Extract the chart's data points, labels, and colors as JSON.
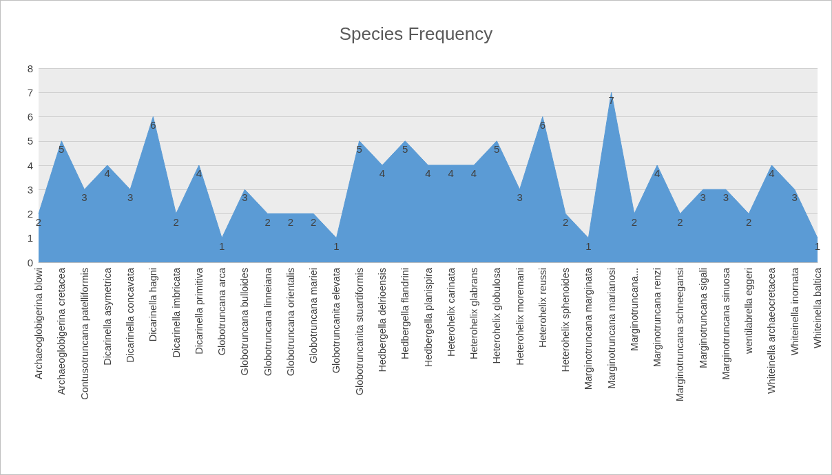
{
  "chart_data": {
    "type": "area",
    "title": "Species Frequency",
    "categories": [
      "Archaeoglobigerina blowi",
      "Archaeoglobigerina cretacea",
      "Contusotruncana patelliformis",
      "Dicarinella asymetrica",
      "Dicarinella concavata",
      "Dicarinella hagni",
      "Dicarinella imbricata",
      "Dicarinella primitiva",
      "Globotruncana arca",
      "Globotruncana bulloides",
      "Globotruncana linneiana",
      "Globotruncana orientalis",
      "Globotruncana mariei",
      "Globotruncanita elevata",
      "Globotruncanita stuartiformis",
      "Hedbergella delrioensis",
      "Hedbergella flandrini",
      "Hedbergella planispira",
      "Heterohelix carinata",
      "Heterohelix glabrans",
      "Heterohelix globulosa",
      "Heterohelix moremani",
      "Heterohelix reussi",
      "Heterohelix sphenoides",
      "Marginotruncana marginata",
      "Marginotruncana marianosi",
      "Marginotruncana...",
      "Marginotruncana renzi",
      "Marginotruncana schneegansi",
      "Marginotruncana sigali",
      "Marginotruncana sinuosa",
      "wentilabrella eggeri",
      "Whiteinella archaeocretacea",
      "Whiteinella inornata",
      "Whiteinella baltica"
    ],
    "values": [
      2,
      5,
      3,
      4,
      3,
      6,
      2,
      4,
      1,
      3,
      2,
      2,
      2,
      1,
      5,
      4,
      5,
      4,
      4,
      4,
      5,
      3,
      6,
      2,
      1,
      7,
      2,
      4,
      2,
      3,
      3,
      2,
      4,
      3,
      1
    ],
    "color": "#5b9bd5",
    "ylim": [
      0,
      8
    ],
    "yticks": [
      0,
      1,
      2,
      3,
      4,
      5,
      6,
      7,
      8
    ],
    "grid": "y",
    "data_labels": true
  }
}
